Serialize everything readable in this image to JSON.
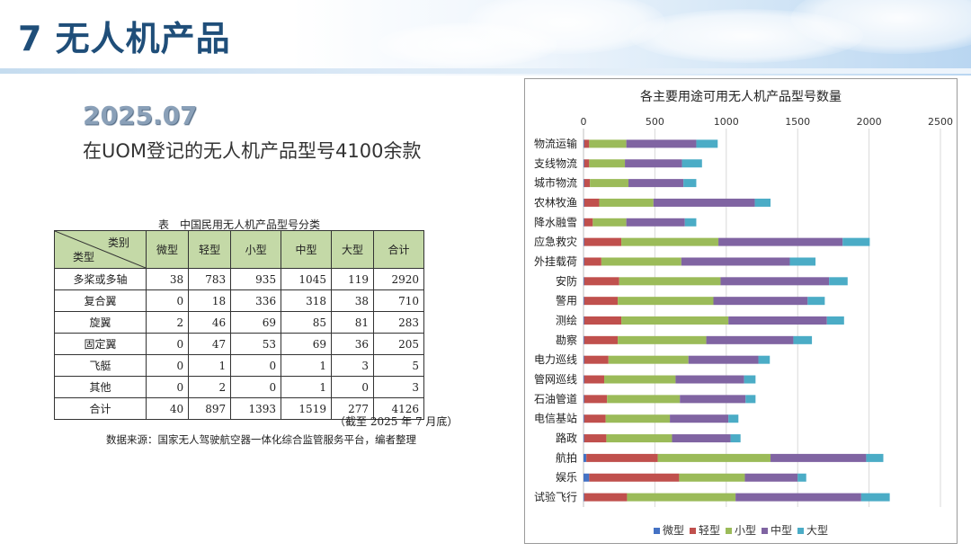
{
  "page": {
    "title": "7 无人机产品",
    "date": "2025.07",
    "subtitle": "在UOM登记的无人机产品型号4100余款"
  },
  "table": {
    "caption": "表　中国民用无人机产品型号分类",
    "corner_top": "类别",
    "corner_bottom": "类型",
    "columns": [
      "微型",
      "轻型",
      "小型",
      "中型",
      "大型",
      "合计"
    ],
    "rows": [
      {
        "label": "多桨或多轴",
        "values": [
          "38",
          "783",
          "935",
          "1045",
          "119",
          "2920"
        ]
      },
      {
        "label": "复合翼",
        "values": [
          "0",
          "18",
          "336",
          "318",
          "38",
          "710"
        ]
      },
      {
        "label": "旋翼",
        "values": [
          "2",
          "46",
          "69",
          "85",
          "81",
          "283"
        ]
      },
      {
        "label": "固定翼",
        "values": [
          "0",
          "47",
          "53",
          "69",
          "36",
          "205"
        ]
      },
      {
        "label": "飞艇",
        "values": [
          "0",
          "1",
          "0",
          "1",
          "3",
          "5"
        ]
      },
      {
        "label": "其他",
        "values": [
          "0",
          "2",
          "0",
          "1",
          "0",
          "3"
        ]
      },
      {
        "label": "合计",
        "values": [
          "40",
          "897",
          "1393",
          "1519",
          "277",
          "4126"
        ]
      }
    ],
    "note": "（截至 2025 年 7 月底）",
    "source": "数据来源：国家无人驾驶航空器一体化综合监管服务平台，编者整理"
  },
  "chart_data": {
    "type": "bar",
    "orientation": "horizontal",
    "stacked": true,
    "title": "各主要用途可用无人机产品型号数量",
    "xlabel": "",
    "ylabel": "",
    "xlim": [
      0,
      2500
    ],
    "xticks": [
      0,
      500,
      1000,
      1500,
      2000,
      2500
    ],
    "grid": true,
    "legend_position": "bottom",
    "categories": [
      "物流运输",
      "支线物流",
      "城市物流",
      "农林牧渔",
      "降水融雪",
      "应急救灾",
      "外挂载荷",
      "安防",
      "警用",
      "测绘",
      "勘察",
      "电力巡线",
      "管网巡线",
      "石油管道",
      "电信基站",
      "路政",
      "航拍",
      "娱乐",
      "试验飞行"
    ],
    "series": [
      {
        "name": "微型",
        "color": "#4472c4",
        "values": [
          5,
          5,
          5,
          5,
          5,
          5,
          5,
          5,
          5,
          5,
          5,
          5,
          5,
          5,
          5,
          5,
          20,
          40,
          5
        ]
      },
      {
        "name": "轻型",
        "color": "#c0504d",
        "values": [
          35,
          35,
          40,
          105,
          60,
          260,
          120,
          245,
          235,
          260,
          235,
          170,
          140,
          160,
          150,
          155,
          500,
          630,
          300
        ]
      },
      {
        "name": "小型",
        "color": "#9bbb59",
        "values": [
          260,
          250,
          270,
          380,
          235,
          680,
          560,
          710,
          670,
          750,
          620,
          560,
          500,
          510,
          450,
          460,
          790,
          460,
          760
        ]
      },
      {
        "name": "中型",
        "color": "#8064a2",
        "values": [
          490,
          400,
          385,
          710,
          410,
          870,
          760,
          760,
          660,
          690,
          610,
          490,
          480,
          460,
          410,
          410,
          670,
          370,
          880
        ]
      },
      {
        "name": "大型",
        "color": "#4bacc6",
        "values": [
          150,
          140,
          90,
          110,
          80,
          190,
          180,
          130,
          120,
          120,
          130,
          80,
          80,
          70,
          70,
          70,
          120,
          60,
          200
        ]
      }
    ]
  }
}
